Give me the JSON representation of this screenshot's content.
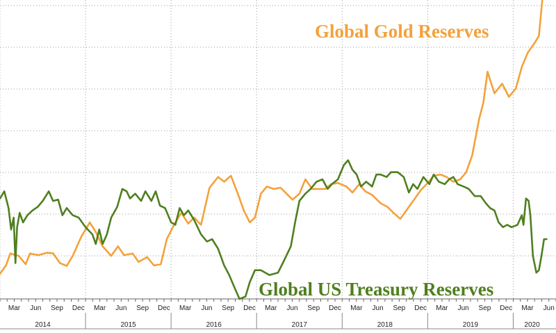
{
  "chart_data": {
    "type": "line",
    "grid": true,
    "x_range": [
      "2014-01",
      "2020-06"
    ],
    "y_range_normalized": [
      0,
      100
    ],
    "x_month_ticks": [
      "Mar",
      "Jun",
      "Sep",
      "Dec",
      "Mar",
      "Jun",
      "Sep",
      "Dec",
      "Mar",
      "Jun",
      "Sep",
      "Dec",
      "Mar",
      "Jun",
      "Sep",
      "Dec",
      "Mar",
      "Jun",
      "Sep",
      "Dec",
      "Mar",
      "Jun",
      "Sep",
      "Dec",
      "Mar",
      "Jun"
    ],
    "x_year_labels": [
      {
        "label": "2014",
        "mid": 2014.5
      },
      {
        "label": "2015",
        "mid": 2015.5
      },
      {
        "label": "2016",
        "mid": 2016.5
      },
      {
        "label": "2017",
        "mid": 2017.5
      },
      {
        "label": "2018",
        "mid": 2018.5
      },
      {
        "label": "2019",
        "mid": 2019.5
      },
      {
        "label": "2020",
        "mid": 2020.22
      }
    ],
    "series": [
      {
        "name": "Global Gold Reserves",
        "color": "#f4a13a",
        "points": [
          [
            2014.0,
            10.5
          ],
          [
            2014.07,
            14
          ],
          [
            2014.12,
            19
          ],
          [
            2014.17,
            18.5
          ],
          [
            2014.22,
            18
          ],
          [
            2014.3,
            14.5
          ],
          [
            2014.35,
            19
          ],
          [
            2014.45,
            18.3
          ],
          [
            2014.55,
            19.3
          ],
          [
            2014.62,
            19.1
          ],
          [
            2014.7,
            15
          ],
          [
            2014.78,
            13.8
          ],
          [
            2014.85,
            18
          ],
          [
            2014.95,
            26
          ],
          [
            2015.05,
            32
          ],
          [
            2015.12,
            28
          ],
          [
            2015.2,
            22
          ],
          [
            2015.3,
            18
          ],
          [
            2015.38,
            22
          ],
          [
            2015.45,
            18.3
          ],
          [
            2015.55,
            19
          ],
          [
            2015.62,
            15.5
          ],
          [
            2015.72,
            17.5
          ],
          [
            2015.8,
            14
          ],
          [
            2015.88,
            14.5
          ],
          [
            2015.95,
            25
          ],
          [
            2016.05,
            32
          ],
          [
            2016.12,
            36
          ],
          [
            2016.2,
            31.5
          ],
          [
            2016.27,
            34
          ],
          [
            2016.35,
            31
          ],
          [
            2016.45,
            46.5
          ],
          [
            2016.55,
            51
          ],
          [
            2016.62,
            49
          ],
          [
            2016.7,
            51.5
          ],
          [
            2016.78,
            44
          ],
          [
            2016.85,
            37
          ],
          [
            2016.92,
            32
          ],
          [
            2016.98,
            34
          ],
          [
            2017.05,
            44
          ],
          [
            2017.12,
            47
          ],
          [
            2017.2,
            46
          ],
          [
            2017.28,
            46.5
          ],
          [
            2017.35,
            44
          ],
          [
            2017.42,
            41.5
          ],
          [
            2017.5,
            44
          ],
          [
            2017.57,
            50
          ],
          [
            2017.65,
            46
          ],
          [
            2017.72,
            46
          ],
          [
            2017.8,
            46
          ],
          [
            2017.87,
            48
          ],
          [
            2017.95,
            48.5
          ],
          [
            2018.05,
            47
          ],
          [
            2018.12,
            44.5
          ],
          [
            2018.2,
            48
          ],
          [
            2018.27,
            45
          ],
          [
            2018.35,
            43.5
          ],
          [
            2018.45,
            40
          ],
          [
            2018.53,
            38.5
          ],
          [
            2018.6,
            36
          ],
          [
            2018.68,
            33.5
          ],
          [
            2018.75,
            37
          ],
          [
            2018.83,
            41
          ],
          [
            2018.92,
            45.5
          ],
          [
            2019.0,
            48.5
          ],
          [
            2019.07,
            51.5
          ],
          [
            2019.15,
            52
          ],
          [
            2019.22,
            51
          ],
          [
            2019.3,
            49
          ],
          [
            2019.38,
            50
          ],
          [
            2019.45,
            53
          ],
          [
            2019.52,
            60
          ],
          [
            2019.6,
            75
          ],
          [
            2019.65,
            82
          ],
          [
            2019.7,
            95
          ],
          [
            2019.78,
            86
          ],
          [
            2019.87,
            90
          ],
          [
            2019.95,
            84.5
          ],
          [
            2020.03,
            88
          ],
          [
            2020.1,
            97
          ],
          [
            2020.17,
            103
          ],
          [
            2020.25,
            107
          ],
          [
            2020.3,
            110
          ],
          [
            2020.34,
            125
          ]
        ]
      },
      {
        "name": "Global US Treasury Reserves",
        "color": "#4f7f1f",
        "points": [
          [
            2014.0,
            42
          ],
          [
            2014.05,
            45
          ],
          [
            2014.1,
            38
          ],
          [
            2014.13,
            29
          ],
          [
            2014.16,
            34
          ],
          [
            2014.18,
            15
          ],
          [
            2014.2,
            30
          ],
          [
            2014.23,
            36
          ],
          [
            2014.27,
            32
          ],
          [
            2014.32,
            35
          ],
          [
            2014.38,
            37
          ],
          [
            2014.44,
            38.5
          ],
          [
            2014.5,
            41
          ],
          [
            2014.57,
            45
          ],
          [
            2014.62,
            41
          ],
          [
            2014.68,
            41.5
          ],
          [
            2014.73,
            35
          ],
          [
            2014.78,
            38
          ],
          [
            2014.85,
            35
          ],
          [
            2014.92,
            34
          ],
          [
            2015.0,
            30
          ],
          [
            2015.08,
            27
          ],
          [
            2015.12,
            23
          ],
          [
            2015.16,
            29
          ],
          [
            2015.2,
            23
          ],
          [
            2015.25,
            27
          ],
          [
            2015.3,
            34
          ],
          [
            2015.37,
            38.5
          ],
          [
            2015.43,
            46
          ],
          [
            2015.48,
            45
          ],
          [
            2015.52,
            42
          ],
          [
            2015.58,
            44
          ],
          [
            2015.65,
            41
          ],
          [
            2015.7,
            45
          ],
          [
            2015.77,
            41
          ],
          [
            2015.82,
            45
          ],
          [
            2015.87,
            39
          ],
          [
            2015.93,
            38
          ],
          [
            2016.0,
            32
          ],
          [
            2016.05,
            31
          ],
          [
            2016.1,
            38
          ],
          [
            2016.15,
            35
          ],
          [
            2016.2,
            37
          ],
          [
            2016.27,
            33
          ],
          [
            2016.35,
            27
          ],
          [
            2016.42,
            24
          ],
          [
            2016.48,
            25
          ],
          [
            2016.55,
            21
          ],
          [
            2016.62,
            14
          ],
          [
            2016.68,
            10
          ],
          [
            2016.75,
            4
          ],
          [
            2016.8,
            0
          ],
          [
            2016.87,
            1
          ],
          [
            2016.92,
            7
          ],
          [
            2016.98,
            12
          ],
          [
            2017.05,
            12
          ],
          [
            2017.15,
            10
          ],
          [
            2017.25,
            11
          ],
          [
            2017.32,
            16
          ],
          [
            2017.4,
            22
          ],
          [
            2017.45,
            32
          ],
          [
            2017.5,
            41
          ],
          [
            2017.57,
            44
          ],
          [
            2017.63,
            46
          ],
          [
            2017.7,
            49
          ],
          [
            2017.77,
            50
          ],
          [
            2017.83,
            46
          ],
          [
            2017.88,
            48
          ],
          [
            2017.95,
            50
          ],
          [
            2018.02,
            56
          ],
          [
            2018.07,
            58
          ],
          [
            2018.12,
            54
          ],
          [
            2018.17,
            52
          ],
          [
            2018.22,
            47
          ],
          [
            2018.28,
            49
          ],
          [
            2018.35,
            47
          ],
          [
            2018.4,
            52
          ],
          [
            2018.45,
            52
          ],
          [
            2018.52,
            51
          ],
          [
            2018.57,
            53
          ],
          [
            2018.65,
            53
          ],
          [
            2018.72,
            51
          ],
          [
            2018.78,
            44.5
          ],
          [
            2018.83,
            48
          ],
          [
            2018.88,
            46
          ],
          [
            2018.95,
            51
          ],
          [
            2019.02,
            48
          ],
          [
            2019.07,
            52
          ],
          [
            2019.13,
            49
          ],
          [
            2019.2,
            48
          ],
          [
            2019.25,
            50
          ],
          [
            2019.3,
            51
          ],
          [
            2019.35,
            48
          ],
          [
            2019.42,
            47
          ],
          [
            2019.48,
            46
          ],
          [
            2019.55,
            43
          ],
          [
            2019.62,
            43
          ],
          [
            2019.68,
            40
          ],
          [
            2019.73,
            38
          ],
          [
            2019.78,
            37
          ],
          [
            2019.83,
            32
          ],
          [
            2019.88,
            30
          ],
          [
            2019.93,
            31
          ],
          [
            2019.98,
            30
          ],
          [
            2020.05,
            31
          ],
          [
            2020.1,
            35
          ],
          [
            2020.12,
            31
          ],
          [
            2020.15,
            42
          ],
          [
            2020.18,
            41
          ],
          [
            2020.2,
            35
          ],
          [
            2020.23,
            18
          ],
          [
            2020.27,
            11
          ],
          [
            2020.3,
            12
          ],
          [
            2020.33,
            18
          ],
          [
            2020.36,
            25
          ],
          [
            2020.39,
            25
          ]
        ]
      }
    ]
  }
}
